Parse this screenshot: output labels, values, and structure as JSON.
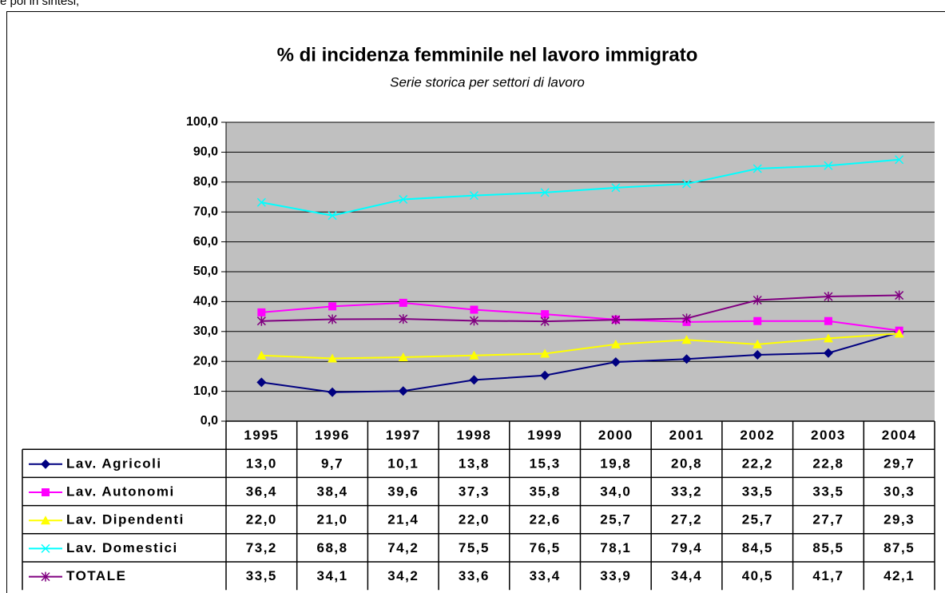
{
  "page_note": "e poi in sintesi,",
  "chart_data": {
    "type": "line",
    "title": "% di incidenza femminile nel lavoro immigrato",
    "subtitle": "Serie storica per settori di lavoro",
    "categories": [
      "1995",
      "1996",
      "1997",
      "1998",
      "1999",
      "2000",
      "2001",
      "2002",
      "2003",
      "2004"
    ],
    "ylim": [
      0,
      100
    ],
    "yticks": [
      {
        "value": 0,
        "label": "0,0"
      },
      {
        "value": 10,
        "label": "10,0"
      },
      {
        "value": 20,
        "label": "20,0"
      },
      {
        "value": 30,
        "label": "30,0"
      },
      {
        "value": 40,
        "label": "40,0"
      },
      {
        "value": 50,
        "label": "50,0"
      },
      {
        "value": 60,
        "label": "60,0"
      },
      {
        "value": 70,
        "label": "70,0"
      },
      {
        "value": 80,
        "label": "80,0"
      },
      {
        "value": 90,
        "label": "90,0"
      },
      {
        "value": 100,
        "label": "100,0"
      }
    ],
    "grid": true,
    "series": [
      {
        "name": "Lav. Agricoli",
        "color": "#000080",
        "marker": "diamond",
        "values": [
          13.0,
          9.7,
          10.1,
          13.8,
          15.3,
          19.8,
          20.8,
          22.2,
          22.8,
          29.7
        ],
        "value_labels": [
          "13,0",
          "9,7",
          "10,1",
          "13,8",
          "15,3",
          "19,8",
          "20,8",
          "22,2",
          "22,8",
          "29,7"
        ]
      },
      {
        "name": "Lav. Autonomi",
        "color": "#ff00ff",
        "marker": "square",
        "values": [
          36.4,
          38.4,
          39.6,
          37.3,
          35.8,
          34.0,
          33.2,
          33.5,
          33.5,
          30.3
        ],
        "value_labels": [
          "36,4",
          "38,4",
          "39,6",
          "37,3",
          "35,8",
          "34,0",
          "33,2",
          "33,5",
          "33,5",
          "30,3"
        ]
      },
      {
        "name": "Lav. Dipendenti",
        "color": "#ffff00",
        "marker": "triangle",
        "values": [
          22.0,
          21.0,
          21.4,
          22.0,
          22.6,
          25.7,
          27.2,
          25.7,
          27.7,
          29.3
        ],
        "value_labels": [
          "22,0",
          "21,0",
          "21,4",
          "22,0",
          "22,6",
          "25,7",
          "27,2",
          "25,7",
          "27,7",
          "29,3"
        ]
      },
      {
        "name": "Lav. Domestici",
        "color": "#00ffff",
        "marker": "x",
        "values": [
          73.2,
          68.8,
          74.2,
          75.5,
          76.5,
          78.1,
          79.4,
          84.5,
          85.5,
          87.5
        ],
        "value_labels": [
          "73,2",
          "68,8",
          "74,2",
          "75,5",
          "76,5",
          "78,1",
          "79,4",
          "84,5",
          "85,5",
          "87,5"
        ]
      },
      {
        "name": "TOTALE",
        "color": "#800080",
        "marker": "star",
        "values": [
          33.5,
          34.1,
          34.2,
          33.6,
          33.4,
          33.9,
          34.4,
          40.5,
          41.7,
          42.1
        ],
        "value_labels": [
          "33,5",
          "34,1",
          "34,2",
          "33,6",
          "33,4",
          "33,9",
          "34,4",
          "40,5",
          "41,7",
          "42,1"
        ]
      }
    ]
  }
}
